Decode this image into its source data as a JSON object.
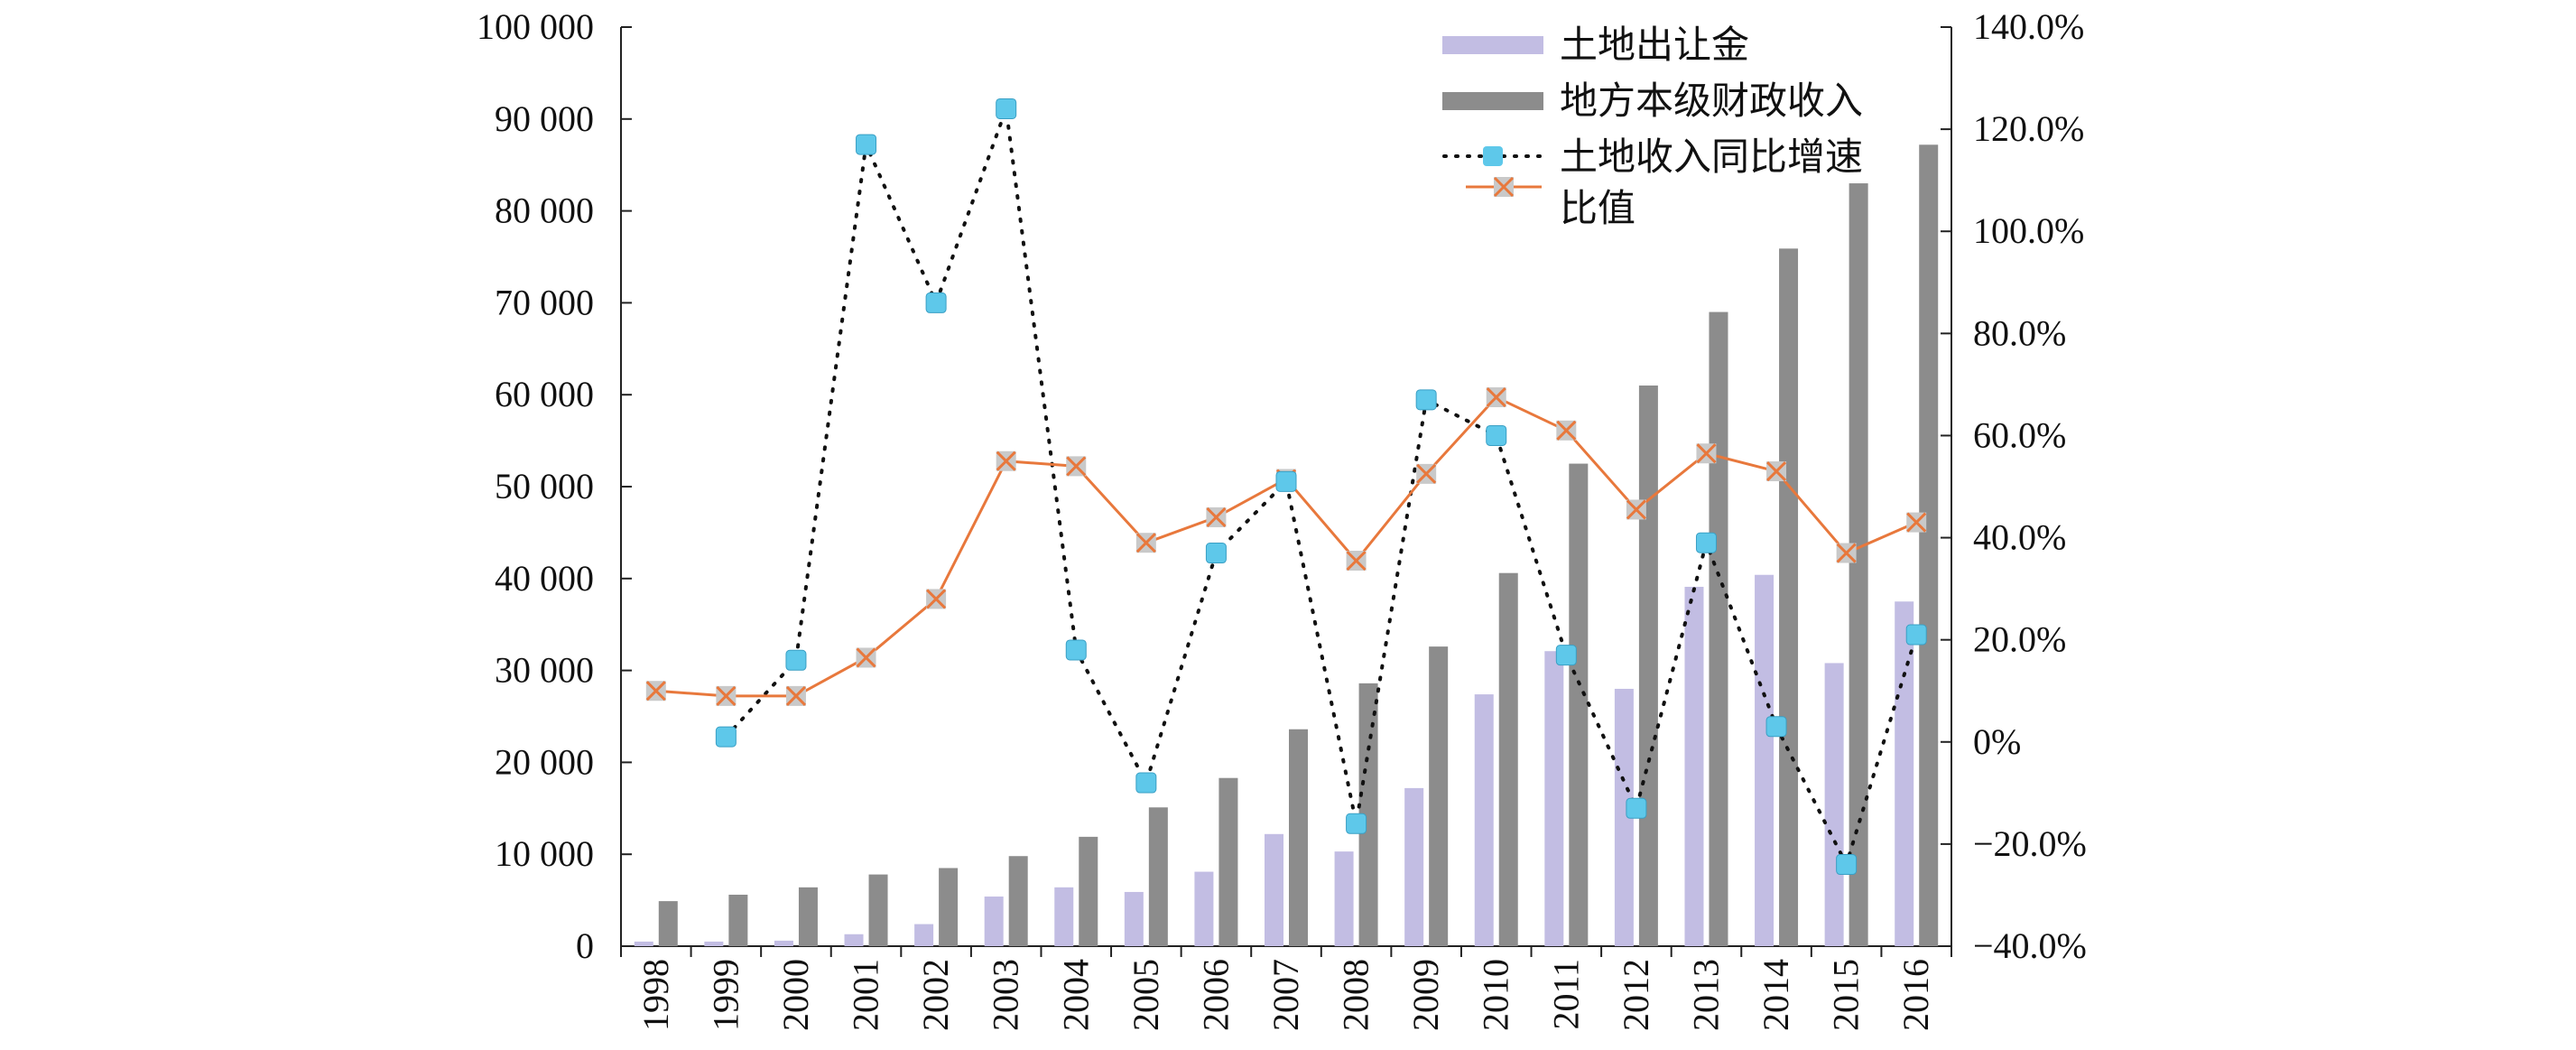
{
  "colors": {
    "land_bar": "#c2bde3",
    "fiscal_bar": "#8c8c8c",
    "growth_marker": "#5ec8ea",
    "growth_line": "#111111",
    "ratio_line": "#e8783c",
    "ratio_marker_fill": "#c9c9c9"
  },
  "chart_data": {
    "type": "bar",
    "title": "",
    "xlabel": "",
    "ylabel": "",
    "categories": [
      "1998",
      "1999",
      "2000",
      "2001",
      "2002",
      "2003",
      "2004",
      "2005",
      "2006",
      "2007",
      "2008",
      "2009",
      "2010",
      "2011",
      "2012",
      "2013",
      "2014",
      "2015",
      "2016"
    ],
    "y_left": {
      "lim": [
        0,
        100000
      ],
      "ticks": [
        0,
        10000,
        20000,
        30000,
        40000,
        50000,
        60000,
        70000,
        80000,
        90000,
        100000
      ],
      "tick_labels": [
        "0",
        "10 000",
        "20 000",
        "30 000",
        "40 000",
        "50 000",
        "60 000",
        "70 000",
        "80 000",
        "90 000",
        "100 000"
      ]
    },
    "y_right": {
      "lim": [
        -40,
        140
      ],
      "ticks": [
        -40,
        -20,
        0,
        20,
        40,
        60,
        80,
        100,
        120,
        140
      ],
      "tick_labels": [
        "−40.0%",
        "−20.0%",
        "0%",
        "20.0%",
        "40.0%",
        "60.0%",
        "80.0%",
        "100.0%",
        "120.0%",
        "140.0%"
      ]
    },
    "series": [
      {
        "name": "土地出让金",
        "type": "bar",
        "axis": "left",
        "values": [
          500,
          500,
          600,
          1300,
          2400,
          5400,
          6400,
          5900,
          8100,
          12200,
          10300,
          17200,
          27400,
          32100,
          28000,
          39100,
          40400,
          30800,
          37500
        ]
      },
      {
        "name": "地方本级财政收入",
        "type": "bar",
        "axis": "left",
        "values": [
          4900,
          5600,
          6400,
          7800,
          8500,
          9800,
          11900,
          15100,
          18300,
          23600,
          28600,
          32600,
          40600,
          52500,
          61000,
          69000,
          75900,
          83000,
          87200
        ]
      },
      {
        "name": "土地收入同比增速",
        "type": "line",
        "axis": "right",
        "style": "dotted",
        "values": [
          null,
          1.0,
          16.0,
          117.0,
          86.0,
          124.0,
          18.0,
          -8.0,
          37.0,
          51.0,
          -16.0,
          67.0,
          60.0,
          17.0,
          -13.0,
          39.0,
          3.0,
          -24.0,
          21.0
        ]
      },
      {
        "name": "比值",
        "type": "line",
        "axis": "right",
        "style": "solid",
        "values": [
          10.0,
          9.0,
          9.0,
          16.5,
          28.0,
          55.0,
          54.0,
          39.0,
          44.0,
          51.5,
          35.5,
          52.5,
          67.5,
          61.0,
          45.5,
          56.5,
          53.0,
          37.0,
          43.0
        ]
      }
    ],
    "grid": false,
    "legend_position": "top-right"
  }
}
